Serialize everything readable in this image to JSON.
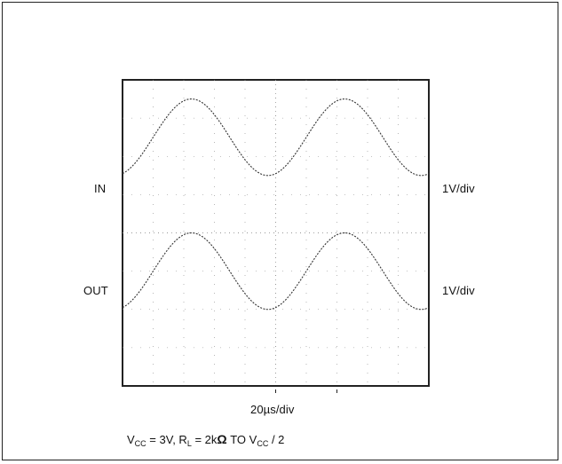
{
  "chart_data": {
    "type": "line",
    "title": "",
    "xlabel": "20µs/div",
    "ylabel": "",
    "x_divisions": 10,
    "y_divisions": 8,
    "x_unit_per_div": "20µs",
    "xlim": [
      0,
      200
    ],
    "x_units": "µs",
    "y_units": "V",
    "grid": true,
    "series": [
      {
        "name": "IN",
        "scale": "1V/div",
        "waveform": "sine",
        "period_us": 100,
        "amplitude_divisions": 1.0,
        "center_division": 2.5,
        "x_first_peak_us": 45
      },
      {
        "name": "OUT",
        "scale": "1V/div",
        "waveform": "sine",
        "period_us": 100,
        "amplitude_divisions": 1.0,
        "center_division": -1.0,
        "x_first_peak_us": 45
      }
    ]
  },
  "labels": {
    "in_name": "IN",
    "in_scale": "1V/div",
    "out_name": "OUT",
    "out_scale": "1V/div",
    "x_scale": "20µs/div"
  },
  "caption": {
    "vcc_v": "V",
    "vcc_sub": "CC",
    "vcc_val": " = 3V, R",
    "rl_sub": "L",
    "rl_val": " = 2k",
    "ohm": "Ω",
    "to_v": " TO V",
    "to_sub": "CC",
    "tail": " / 2"
  },
  "colors": {
    "trace": "#333333",
    "grid": "#888888",
    "frame": "#222222"
  }
}
